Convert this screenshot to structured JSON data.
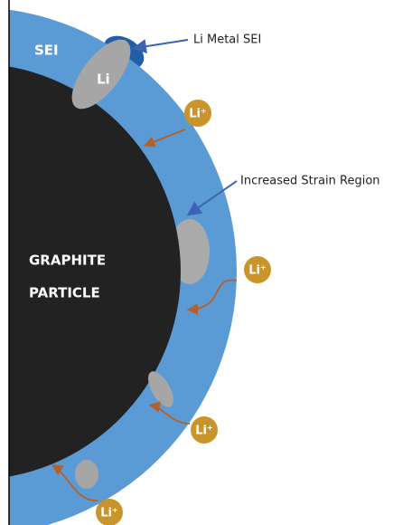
{
  "labels": {
    "sei": "SEI",
    "li": "Li",
    "li_metal_sei": "Li Metal SEI",
    "strain": "Increased Strain Region",
    "graphite": "GRAPHITE",
    "particle": "PARTICLE"
  },
  "ions": [
    "Li⁺",
    "Li⁺",
    "Li⁺",
    "Li⁺"
  ]
}
